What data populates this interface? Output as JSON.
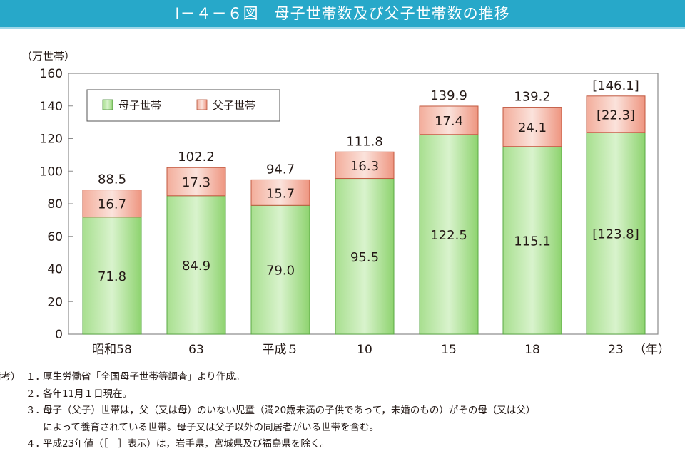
{
  "title": "Ⅰ－４－６図　母子世帯数及び父子世帯数の推移",
  "colors": {
    "title_bar": "#27a8c9",
    "mother": "#8ed36f",
    "mother_light": "#d9f3cd",
    "father": "#f09a85",
    "father_light": "#fbe3dc",
    "plot_border": "#8a8a8a"
  },
  "chart_data": {
    "type": "bar",
    "stacked": true,
    "ylabel": "（万世帯）",
    "xlabel": "（年）",
    "ylim": [
      0,
      160
    ],
    "yticks": [
      0,
      20,
      40,
      60,
      80,
      100,
      120,
      140,
      160
    ],
    "categories": [
      "昭和58",
      "63",
      "平成５",
      "10",
      "15",
      "18",
      "23"
    ],
    "series": [
      {
        "name": "母子世帯",
        "values": [
          71.8,
          84.9,
          79.0,
          95.5,
          122.5,
          115.1,
          123.8
        ],
        "labels": [
          "71.8",
          "84.9",
          "79.0",
          "95.5",
          "122.5",
          "115.1",
          "[123.8]"
        ]
      },
      {
        "name": "父子世帯",
        "values": [
          16.7,
          17.3,
          15.7,
          16.3,
          17.4,
          24.1,
          22.3
        ],
        "labels": [
          "16.7",
          "17.3",
          "15.7",
          "16.3",
          "17.4",
          "24.1",
          "[22.3]"
        ]
      }
    ],
    "totals": [
      88.5,
      102.2,
      94.7,
      111.8,
      139.9,
      139.2,
      146.1
    ],
    "total_labels": [
      "88.5",
      "102.2",
      "94.7",
      "111.8",
      "139.9",
      "139.2",
      "[146.1]"
    ],
    "legend_position": "top-left",
    "grid": false
  },
  "notes": {
    "head": "備考）",
    "items": [
      {
        "num": "１．",
        "text": "厚生労働省「全国母子世帯等調査」より作成。"
      },
      {
        "num": "２．",
        "text": "各年11月１日現在。"
      },
      {
        "num": "３．",
        "text": "母子（父子）世帯は，父（又は母）のいない児童（満20歳未満の子供であって，未婚のもの）がその母（又は父）"
      },
      {
        "num": "",
        "text": "によって養育されている世帯。母子又は父子以外の同居者がいる世帯を含む。"
      },
      {
        "num": "４．",
        "text": "平成23年値（［　］表示）は，岩手県，宮城県及び福島県を除く。"
      }
    ]
  }
}
